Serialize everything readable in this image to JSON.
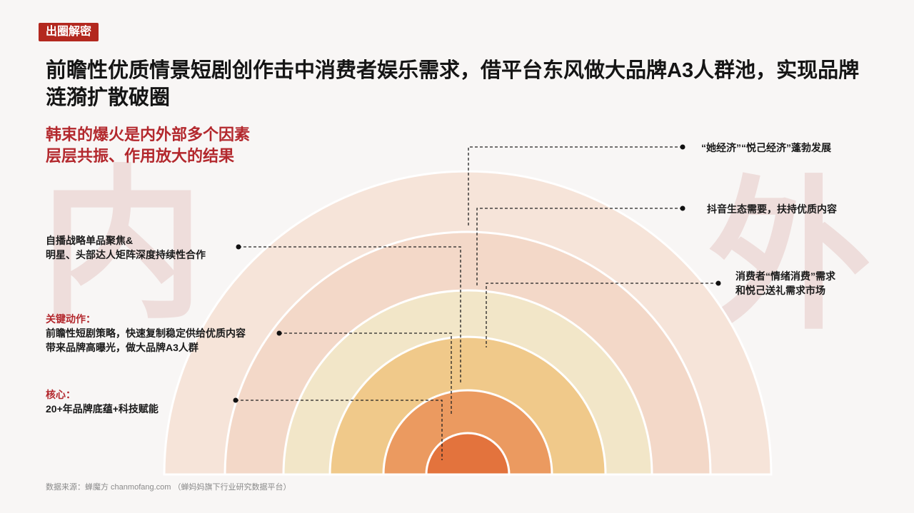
{
  "tag": "出圈解密",
  "title": "前瞻性优质情景短剧创作击中消费者娱乐需求，借平台东风做大品牌A3人群池，实现品牌涟漪扩散破圈",
  "subtitle_lines": [
    "韩束的爆火是内外部多个因素",
    "层层共振、作用放大的结果"
  ],
  "big_chars": {
    "inner": "内",
    "outer": "外"
  },
  "colors": {
    "accent": "#b3282d",
    "rings": [
      "#f6e4d9",
      "#f3d8c8",
      "#f2e6c8",
      "#f0c98a",
      "#eb9a60",
      "#e3733d"
    ]
  },
  "left_labels": {
    "strategy": [
      "自播战略单品聚焦&",
      "明星、头部达人矩阵深度持续性合作"
    ],
    "key_action": {
      "heading": "关键动作：",
      "lines": [
        "前瞻性短剧策略，快速复制稳定供给优质内容",
        "带来品牌高曝光，做大品牌A3人群"
      ]
    },
    "core": {
      "heading": "核心：",
      "lines": [
        "20+年品牌底蕴+科技赋能"
      ]
    }
  },
  "right_labels": {
    "economy": [
      "“她经济”“悦己经济”蓬勃发展"
    ],
    "douyin": [
      "抖音生态需要，扶持优质内容"
    ],
    "consumer": [
      "消费者“情绪消费”需求",
      "和悦己送礼需求市场"
    ]
  },
  "source": "数据来源：蝉魔方 chanmofang.com （蝉妈妈旗下行业研究数据平台）"
}
